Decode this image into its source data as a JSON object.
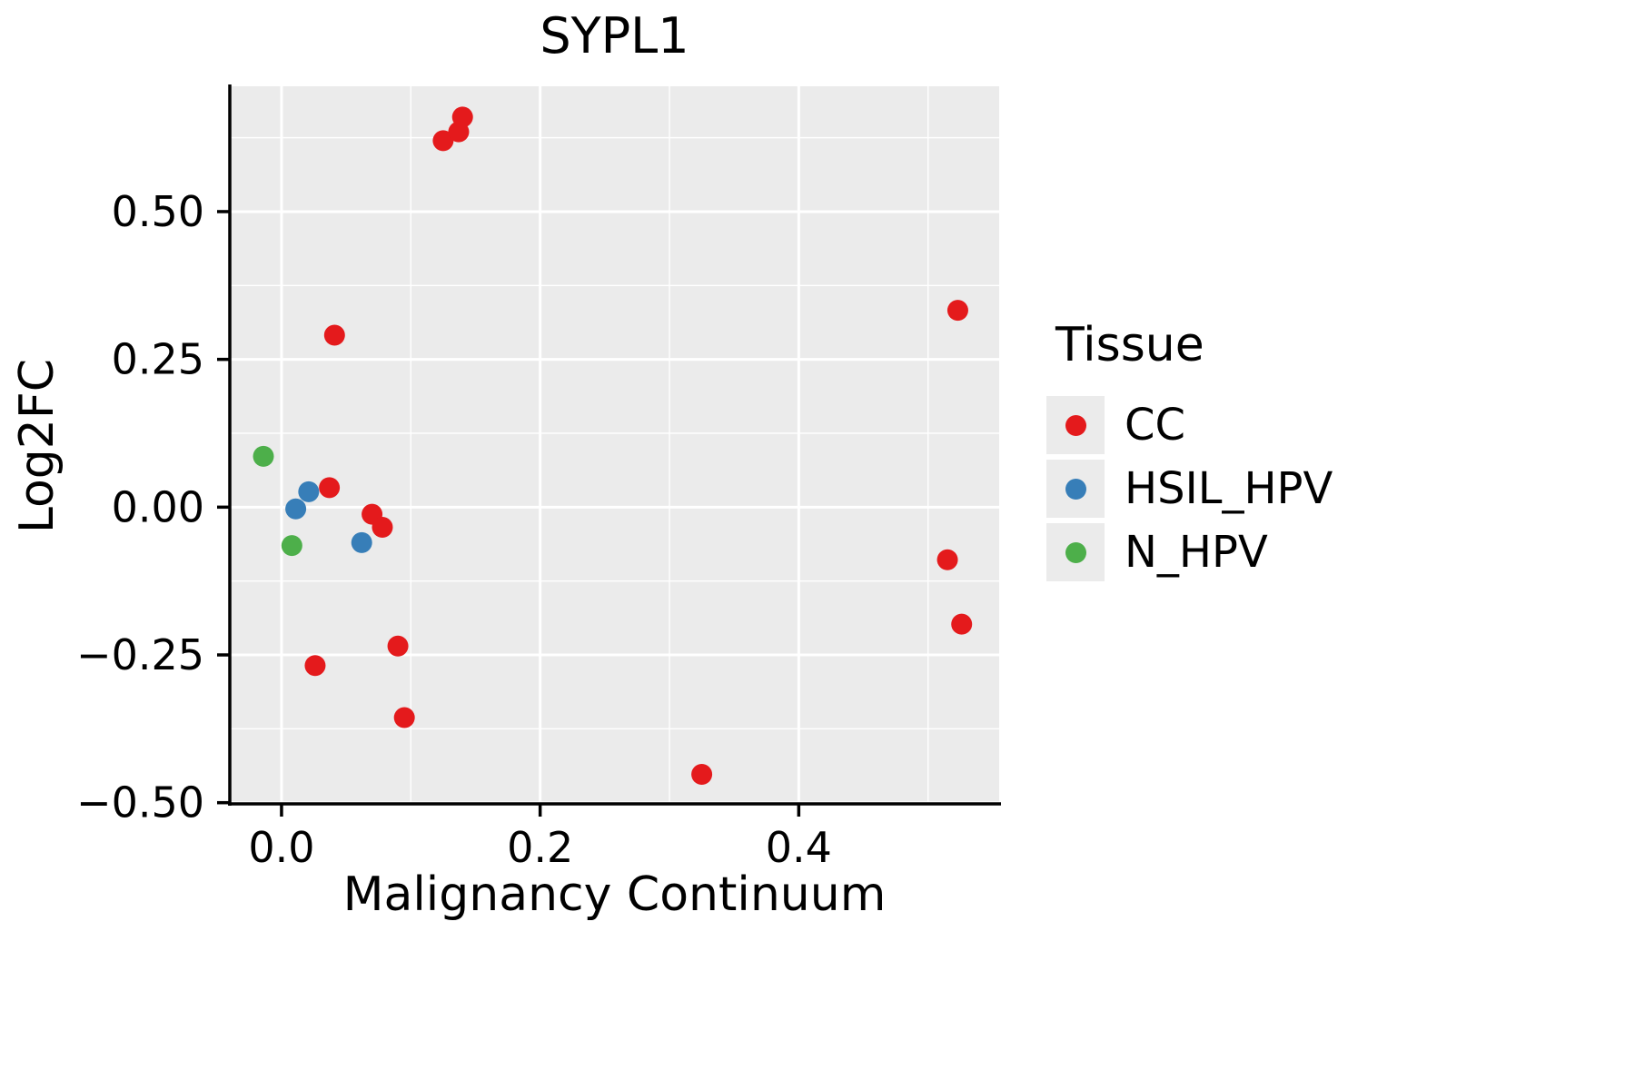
{
  "page": {
    "background": "#FFFFFF"
  },
  "chart_data": {
    "type": "scatter",
    "title": "SYPL1",
    "xlabel": "Malignancy Continuum",
    "ylabel": "Log2FC",
    "legend_title": "Tissue",
    "legend_position": "right",
    "grid": true,
    "xlim": [
      -0.04,
      0.555
    ],
    "ylim": [
      -0.502,
      0.712
    ],
    "x_ticks": [
      {
        "value": 0.0,
        "label": "0.0"
      },
      {
        "value": 0.2,
        "label": "0.2"
      },
      {
        "value": 0.4,
        "label": "0.4"
      }
    ],
    "y_ticks": [
      {
        "value": -0.5,
        "label": "−0.50"
      },
      {
        "value": -0.25,
        "label": "−0.25"
      },
      {
        "value": 0.0,
        "label": "0.00"
      },
      {
        "value": 0.25,
        "label": "0.25"
      },
      {
        "value": 0.5,
        "label": "0.50"
      }
    ],
    "x_minor_ticks": [
      0.1,
      0.3,
      0.5
    ],
    "y_minor_ticks": [
      0.625,
      0.375,
      0.125,
      -0.125,
      -0.375
    ],
    "colors": {
      "panel_bg": "#EBEBEB",
      "grid": "#FFFFFF",
      "axis": "#000000",
      "text": "#000000",
      "legend_key_bg": "#EBEBEB"
    },
    "series": [
      {
        "name": "CC",
        "color": "#E41A1C",
        "points": [
          [
            0.125,
            0.62
          ],
          [
            0.137,
            0.635
          ],
          [
            0.14,
            0.66
          ],
          [
            0.041,
            0.291
          ],
          [
            0.037,
            0.033
          ],
          [
            0.07,
            -0.012
          ],
          [
            0.078,
            -0.034
          ],
          [
            0.026,
            -0.268
          ],
          [
            0.09,
            -0.235
          ],
          [
            0.095,
            -0.356
          ],
          [
            0.325,
            -0.452
          ],
          [
            0.523,
            0.333
          ],
          [
            0.515,
            -0.089
          ],
          [
            0.526,
            -0.198
          ]
        ]
      },
      {
        "name": "HSIL_HPV",
        "color": "#377EB8",
        "points": [
          [
            0.021,
            0.026
          ],
          [
            0.011,
            -0.003
          ],
          [
            0.062,
            -0.06
          ]
        ]
      },
      {
        "name": "N_HPV",
        "color": "#4DAF4A",
        "points": [
          [
            -0.014,
            0.086
          ],
          [
            0.008,
            -0.065
          ]
        ]
      }
    ]
  }
}
